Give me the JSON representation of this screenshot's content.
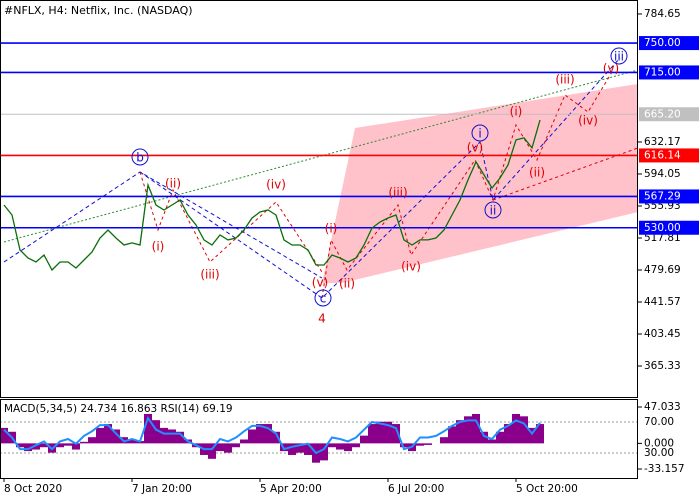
{
  "chart_data": [
    {
      "type": "line",
      "title": "#NFLX, H4:  Netflix, Inc. (NASDAQ)",
      "color": "#0a6e0a",
      "categories": [
        "8 Oct 2020",
        null,
        null,
        null,
        null,
        null,
        null,
        null,
        null,
        null,
        null,
        null,
        null,
        null,
        null,
        null,
        "7 Jan 20:00",
        null,
        null,
        null,
        null,
        null,
        null,
        null,
        null,
        null,
        null,
        null,
        null,
        null,
        null,
        null,
        "5 Apr 20:00",
        null,
        null,
        null,
        null,
        null,
        null,
        null,
        null,
        null,
        null,
        null,
        null,
        null,
        null,
        null,
        "6 Jul 20:00",
        null,
        null,
        null,
        null,
        null,
        null,
        null,
        null,
        null,
        null,
        null,
        null,
        null,
        null,
        null,
        "5 Oct 20:00",
        null,
        null,
        null
      ],
      "values": [
        557.1,
        545.2,
        503.5,
        494.0,
        489.2,
        497.6,
        479.7,
        489.2,
        489.2,
        482.1,
        491.6,
        501.1,
        517.8,
        527.3,
        517.8,
        509.5,
        511.9,
        509.5,
        580.9,
        557.1,
        551.2,
        557.1,
        563.1,
        545.2,
        533.3,
        515.5,
        509.5,
        521.4,
        515.5,
        517.8,
        527.3,
        541.6,
        548.8,
        551.2,
        545.2,
        515.5,
        509.5,
        509.5,
        503.5,
        485.6,
        485.6,
        497.6,
        494.0,
        489.2,
        494.0,
        509.5,
        529.7,
        536.9,
        541.6,
        545.2,
        515.5,
        509.5,
        515.5,
        515.5,
        517.8,
        527.3,
        545.2,
        563.1,
        587.0,
        608.4,
        592.9,
        577.4,
        589.3,
        604.8,
        634.6,
        637.0,
        625.1,
        658.4
      ],
      "ylim": [
        327.2,
        801.3
      ],
      "yticks": [
        784.65,
        632.17,
        594.05,
        555.93,
        517.81,
        479.69,
        441.57,
        403.45,
        365.33
      ],
      "levels": [
        {
          "value": 750,
          "label": "750.00",
          "color": "#0000ff"
        },
        {
          "value": 715,
          "label": "715.00",
          "color": "#0000ff"
        },
        {
          "value": 665.2,
          "label": "665.20",
          "color": "#c0c0c0"
        },
        {
          "value": 616.14,
          "label": "616.14",
          "color": "#ff0000"
        },
        {
          "value": 567.29,
          "label": "567.29",
          "color": "#0000ff"
        },
        {
          "value": 530,
          "label": "530.00",
          "color": "#0000ff"
        }
      ],
      "annotations": [
        "b",
        "(i)",
        "(ii)",
        "(iii)",
        "(iv)",
        "(v)",
        "c",
        "4",
        "(i)",
        "(ii)",
        "(iii)",
        "(iv)",
        "(v)",
        "i",
        "ii",
        "(i)",
        "(ii)",
        "(iii)",
        "(iv)",
        "(v)",
        "iii"
      ]
    },
    {
      "type": "macd",
      "title": "MACD(5,34,5) 24.734 16.863 RSI(14) 69.19",
      "ylim": [
        -44.8,
        56.1
      ],
      "yticks": [
        47.033,
        {
          "value": 0,
          "label": "0.000"
        },
        -33.157
      ],
      "y2lim": [
        -2.3,
        98.4
      ],
      "y2ticks": [
        {
          "value": 70,
          "label": "70.00"
        },
        {
          "value": 30,
          "label": "30.00"
        }
      ],
      "series": [
        {
          "color": "#8b008b",
          "values": [
            20,
            15,
            -5,
            -10,
            -8,
            -5,
            -12,
            -5,
            -3,
            -8,
            2,
            8,
            20,
            25,
            18,
            8,
            5,
            3,
            38,
            30,
            20,
            18,
            15,
            5,
            -5,
            -15,
            -20,
            -10,
            -12,
            -5,
            5,
            18,
            25,
            25,
            15,
            -10,
            -15,
            -12,
            -15,
            -25,
            -22,
            -5,
            -8,
            -10,
            -5,
            10,
            25,
            28,
            28,
            25,
            -5,
            -10,
            -3,
            -2,
            0,
            8,
            22,
            30,
            35,
            38,
            15,
            5,
            15,
            25,
            38,
            35,
            20,
            25
          ]
        },
        {
          "color": "#1e90ff",
          "axis": "y2",
          "values": [
            60,
            50,
            35,
            35,
            40,
            45,
            35,
            45,
            48,
            42,
            52,
            58,
            66,
            66,
            55,
            45,
            48,
            45,
            75,
            60,
            55,
            55,
            55,
            45,
            40,
            35,
            35,
            48,
            45,
            50,
            58,
            65,
            65,
            62,
            55,
            35,
            38,
            40,
            42,
            30,
            35,
            50,
            48,
            45,
            50,
            60,
            70,
            68,
            66,
            62,
            35,
            38,
            50,
            50,
            52,
            58,
            65,
            70,
            72,
            72,
            52,
            48,
            60,
            65,
            72,
            68,
            55,
            69
          ]
        }
      ]
    }
  ]
}
